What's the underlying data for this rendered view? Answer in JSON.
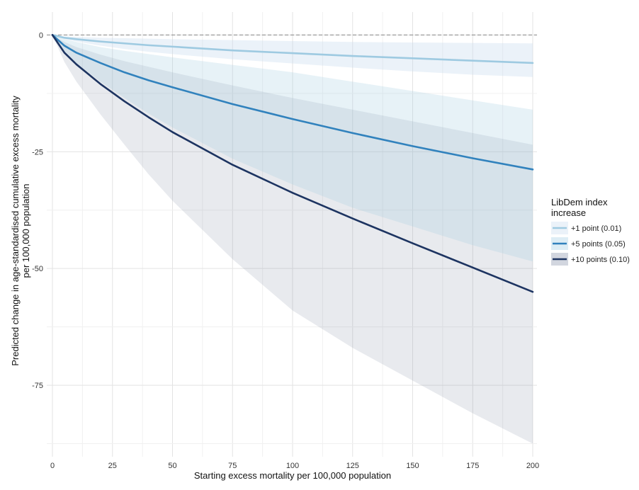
{
  "chart_data": {
    "type": "line",
    "title": "",
    "xlabel": "Starting excess mortality per 100,000 population",
    "ylabel_lines": [
      "Predicted change in age-standardised cumulative excess mortality",
      "per 100,000 population"
    ],
    "xlim": [
      0,
      200
    ],
    "ylim": [
      -90,
      4
    ],
    "x_ticks": [
      0,
      25,
      50,
      75,
      100,
      125,
      150,
      175,
      200
    ],
    "y_ticks": [
      0,
      -25,
      -50,
      -75
    ],
    "reference_line": 0,
    "legend": {
      "title_lines": [
        "LibDem index",
        "increase"
      ],
      "position": "right"
    },
    "x": [
      0,
      5,
      10,
      20,
      30,
      40,
      50,
      75,
      100,
      125,
      150,
      175,
      200
    ],
    "series": [
      {
        "name": "+1 point (0.01)",
        "color": "#9ecae1",
        "band_color": "#c6dbef",
        "band_opacity": 0.35,
        "values": [
          0,
          -0.6,
          -0.9,
          -1.4,
          -1.8,
          -2.2,
          -2.5,
          -3.3,
          -3.9,
          -4.5,
          -5.0,
          -5.5,
          -6.0
        ],
        "lower": [
          0,
          -0.9,
          -1.4,
          -2.3,
          -3.0,
          -3.6,
          -4.1,
          -5.2,
          -6.1,
          -7.0,
          -7.8,
          -8.5,
          -9.0
        ],
        "upper": [
          0,
          -0.3,
          -0.4,
          -0.6,
          -0.7,
          -0.8,
          -0.9,
          -1.1,
          -1.3,
          -1.5,
          -1.6,
          -1.7,
          -1.8
        ]
      },
      {
        "name": "+5 points (0.05)",
        "color": "#3182bd",
        "band_color": "#9ecae1",
        "band_opacity": 0.25,
        "values": [
          0,
          -2.3,
          -3.8,
          -6.0,
          -8.0,
          -9.7,
          -11.2,
          -14.8,
          -18.0,
          -21.0,
          -23.8,
          -26.4,
          -28.8
        ],
        "lower": [
          0,
          -3.6,
          -6.0,
          -10.0,
          -13.5,
          -16.8,
          -19.8,
          -26.5,
          -32.0,
          -37.0,
          -41.0,
          -45.0,
          -48.5
        ],
        "upper": [
          0,
          -0.9,
          -1.5,
          -2.6,
          -3.4,
          -4.1,
          -4.8,
          -6.4,
          -8.0,
          -10.0,
          -12.0,
          -14.0,
          -16.0
        ]
      },
      {
        "name": "+10 points (0.10)",
        "color": "#1d3461",
        "band_color": "#7f8aa3",
        "band_opacity": 0.18,
        "values": [
          0,
          -3.8,
          -6.3,
          -10.5,
          -14.2,
          -17.6,
          -20.8,
          -27.8,
          -33.8,
          -39.3,
          -44.6,
          -49.8,
          -55.0
        ],
        "lower": [
          0,
          -5.8,
          -10.0,
          -17.0,
          -23.5,
          -29.8,
          -35.5,
          -48.0,
          -59.0,
          -67.0,
          -74.0,
          -81.0,
          -87.5
        ],
        "upper": [
          0,
          -1.5,
          -2.6,
          -4.2,
          -5.6,
          -6.8,
          -8.0,
          -10.8,
          -13.5,
          -16.0,
          -18.5,
          -21.0,
          -23.5
        ]
      }
    ]
  }
}
